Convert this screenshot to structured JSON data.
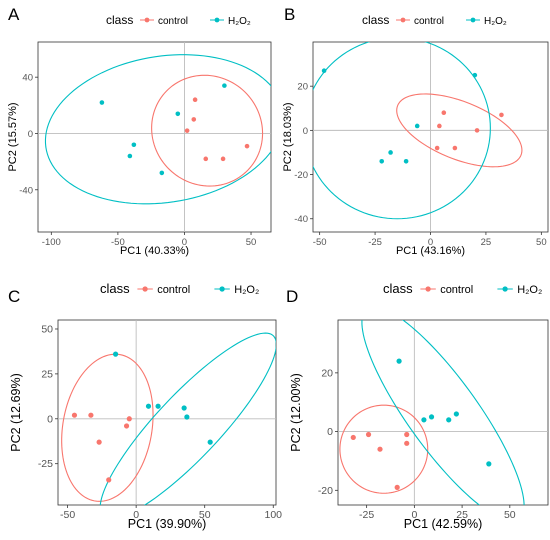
{
  "legend": {
    "title": "class",
    "entries": [
      {
        "label": "control",
        "color": "#F8766D"
      },
      {
        "label": "H₂O₂",
        "color": "#00BFC4"
      }
    ]
  },
  "colors": {
    "control": "#F8766D",
    "h2o2": "#00BFC4",
    "reference_lines": "#bdbdbd"
  },
  "chart_data": [
    {
      "panel": "A",
      "type": "scatter",
      "xlabel": "PC1 (40.33%)",
      "ylabel": "PC2 (15.57%)",
      "xlim": [
        -110,
        65
      ],
      "ylim": [
        -70,
        65
      ],
      "xticks": [
        -100,
        -50,
        0,
        50
      ],
      "yticks": [
        -40,
        0,
        40
      ],
      "reference_lines": {
        "x": 0,
        "y": 0
      },
      "series": [
        {
          "name": "control",
          "points": [
            [
              8,
              24
            ],
            [
              7,
              10
            ],
            [
              2,
              2
            ],
            [
              16,
              -18
            ],
            [
              29,
              -18
            ],
            [
              47,
              -9
            ]
          ],
          "ellipse": {
            "center": [
              17,
              2
            ],
            "rx": 42,
            "ry": 39,
            "angle_deg": -20
          }
        },
        {
          "name": "H₂O₂",
          "points": [
            [
              -62,
              22
            ],
            [
              -38,
              -8
            ],
            [
              -41,
              -16
            ],
            [
              -17,
              -28
            ],
            [
              -5,
              14
            ],
            [
              30,
              34
            ]
          ],
          "ellipse": {
            "center": [
              -15,
              3
            ],
            "rx": 90,
            "ry": 52,
            "angle_deg": 8
          }
        }
      ]
    },
    {
      "panel": "B",
      "type": "scatter",
      "xlabel": "PC1 (43.16%)",
      "ylabel": "PC2 (18.03%)",
      "xlim": [
        -53,
        53
      ],
      "ylim": [
        -46,
        40
      ],
      "xticks": [
        -50,
        -25,
        0,
        25,
        50
      ],
      "yticks": [
        -40,
        -20,
        0,
        20
      ],
      "reference_lines": {
        "x": 0,
        "y": 0
      },
      "series": [
        {
          "name": "control",
          "points": [
            [
              6,
              8
            ],
            [
              4,
              2
            ],
            [
              3,
              -8
            ],
            [
              11,
              -8
            ],
            [
              21,
              0
            ],
            [
              32,
              7
            ]
          ],
          "ellipse": {
            "center": [
              13,
              0
            ],
            "rx": 30,
            "ry": 13,
            "angle_deg": -22
          }
        },
        {
          "name": "H₂O₂",
          "points": [
            [
              -48,
              27
            ],
            [
              -22,
              -14
            ],
            [
              -18,
              -10
            ],
            [
              -11,
              -14
            ],
            [
              -6,
              2
            ],
            [
              20,
              25
            ]
          ],
          "ellipse": {
            "center": [
              -15,
              1
            ],
            "rx": 42,
            "ry": 41,
            "angle_deg": 0
          }
        }
      ]
    },
    {
      "panel": "C",
      "type": "scatter",
      "xlabel": "PC1 (39.90%)",
      "ylabel": "PC2 (12.69%)",
      "xlim": [
        -57,
        102
      ],
      "ylim": [
        -48,
        55
      ],
      "xticks": [
        -50,
        0,
        50,
        100
      ],
      "yticks": [
        -25,
        0,
        25,
        50
      ],
      "reference_lines": {
        "x": 0,
        "y": 0
      },
      "series": [
        {
          "name": "control",
          "points": [
            [
              -45,
              2
            ],
            [
              -33,
              2
            ],
            [
              -27,
              -13
            ],
            [
              -5,
              0
            ],
            [
              -7,
              -4
            ],
            [
              -20,
              -34
            ]
          ],
          "ellipse": {
            "center": [
              -21,
              -5
            ],
            "rx": 42,
            "ry": 32,
            "angle_deg": 70
          }
        },
        {
          "name": "H₂O₂",
          "points": [
            [
              -15,
              36
            ],
            [
              9,
              7
            ],
            [
              16,
              7
            ],
            [
              35,
              6
            ],
            [
              37,
              1
            ],
            [
              54,
              -13
            ]
          ],
          "ellipse": {
            "center": [
              38,
              -4
            ],
            "rx": 80,
            "ry": 20,
            "angle_deg": 38
          }
        }
      ]
    },
    {
      "panel": "D",
      "type": "scatter",
      "xlabel": "PC1 (42.59%)",
      "ylabel": "PC2 (12.00%)",
      "xlim": [
        -40,
        70
      ],
      "ylim": [
        -25,
        38
      ],
      "xticks": [
        -25,
        0,
        25,
        50
      ],
      "yticks": [
        -20,
        0,
        20
      ],
      "reference_lines": {
        "x": 0,
        "y": 0
      },
      "series": [
        {
          "name": "control",
          "points": [
            [
              -32,
              -2
            ],
            [
              -24,
              -1
            ],
            [
              -18,
              -6
            ],
            [
              -4,
              -1
            ],
            [
              -4,
              -4
            ],
            [
              -9,
              -19
            ]
          ],
          "ellipse": {
            "center": [
              -16,
              -6
            ],
            "rx": 23,
            "ry": 15,
            "angle_deg": 0
          }
        },
        {
          "name": "H₂O₂",
          "points": [
            [
              -8,
              24
            ],
            [
              5,
              4
            ],
            [
              9,
              5
            ],
            [
              18,
              4
            ],
            [
              22,
              6
            ],
            [
              39,
              -11
            ]
          ],
          "ellipse": {
            "center": [
              15,
              6
            ],
            "rx": 54,
            "ry": 15,
            "angle_deg": -40
          }
        }
      ]
    }
  ]
}
